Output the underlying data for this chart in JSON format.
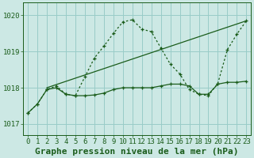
{
  "xlabel": "Graphe pression niveau de la mer (hPa)",
  "bg_color": "#cce8e4",
  "grid_color": "#99ccc8",
  "line_color": "#1a5c1a",
  "xlim": [
    -0.5,
    23.5
  ],
  "ylim": [
    1016.7,
    1020.35
  ],
  "yticks": [
    1017,
    1018,
    1019,
    1020
  ],
  "xticks": [
    0,
    1,
    2,
    3,
    4,
    5,
    6,
    7,
    8,
    9,
    10,
    11,
    12,
    13,
    14,
    15,
    16,
    17,
    18,
    19,
    20,
    21,
    22,
    23
  ],
  "line1_x": [
    0,
    1,
    2,
    3,
    4,
    5,
    6,
    7,
    8,
    9,
    10,
    11,
    12,
    13,
    14,
    15,
    16,
    17,
    18,
    19,
    20,
    21,
    22,
    23
  ],
  "line1_y": [
    1017.3,
    1017.55,
    1017.95,
    1018.0,
    1017.82,
    1017.78,
    1017.78,
    1017.8,
    1017.85,
    1017.95,
    1018.0,
    1018.0,
    1018.0,
    1018.0,
    1018.05,
    1018.1,
    1018.1,
    1018.05,
    1017.82,
    1017.82,
    1018.1,
    1018.15,
    1018.15,
    1018.18
  ],
  "line2_x": [
    0,
    1,
    2,
    3,
    4,
    5,
    6,
    7,
    8,
    9,
    10,
    11,
    12,
    13,
    14,
    15,
    16,
    17,
    18,
    19,
    20,
    21,
    22,
    23
  ],
  "line2_y": [
    1017.3,
    1017.55,
    1017.95,
    1018.05,
    1017.82,
    1017.78,
    1018.3,
    1018.82,
    1019.15,
    1019.5,
    1019.82,
    1019.88,
    1019.62,
    1019.55,
    1019.1,
    1018.65,
    1018.38,
    1017.95,
    1017.82,
    1017.78,
    1018.12,
    1019.05,
    1019.48,
    1019.85
  ],
  "line3_x": [
    2,
    23
  ],
  "line3_y": [
    1018.0,
    1019.85
  ],
  "xlabel_fontsize": 8,
  "tick_fontsize": 6.5
}
